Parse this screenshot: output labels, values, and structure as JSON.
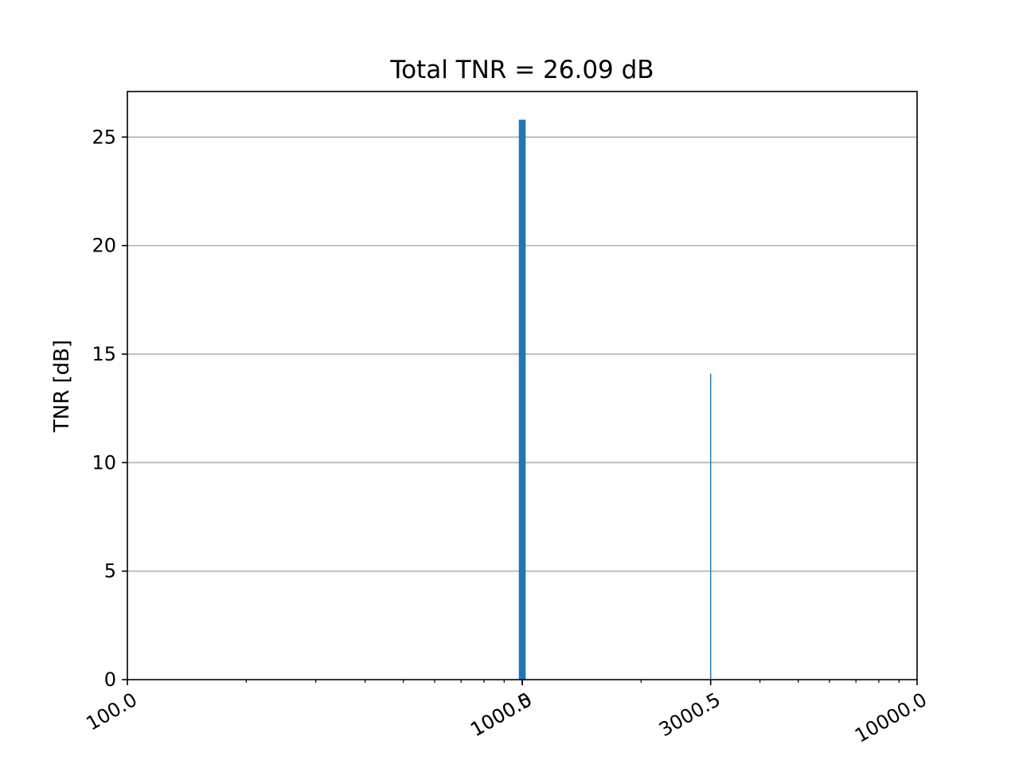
{
  "chart_data": {
    "type": "bar",
    "title": "Total TNR = 26.09 dB",
    "xlabel": "",
    "ylabel": "TNR [dB]",
    "xscale": "log",
    "xlim": [
      100.0,
      10000.0
    ],
    "ylim": [
      0,
      27.1
    ],
    "grid": "y",
    "legend": "none",
    "x_ticks": [
      {
        "value": 100.0,
        "label": "100.0"
      },
      {
        "value": 1000.0,
        "label": "1000.0"
      },
      {
        "value": 1000.5,
        "label": "1000.5"
      },
      {
        "value": 3000.5,
        "label": "3000.5"
      },
      {
        "value": 10000.0,
        "label": "10000.0"
      }
    ],
    "y_ticks": [
      0,
      5,
      10,
      15,
      20,
      25
    ],
    "bars": [
      {
        "x": 1000.25,
        "value": 25.8,
        "width": 40
      },
      {
        "x": 3000.5,
        "value": 14.1,
        "width": 20
      }
    ],
    "bar_color": "#1f77b4",
    "grid_color": "#b0b0b0"
  }
}
